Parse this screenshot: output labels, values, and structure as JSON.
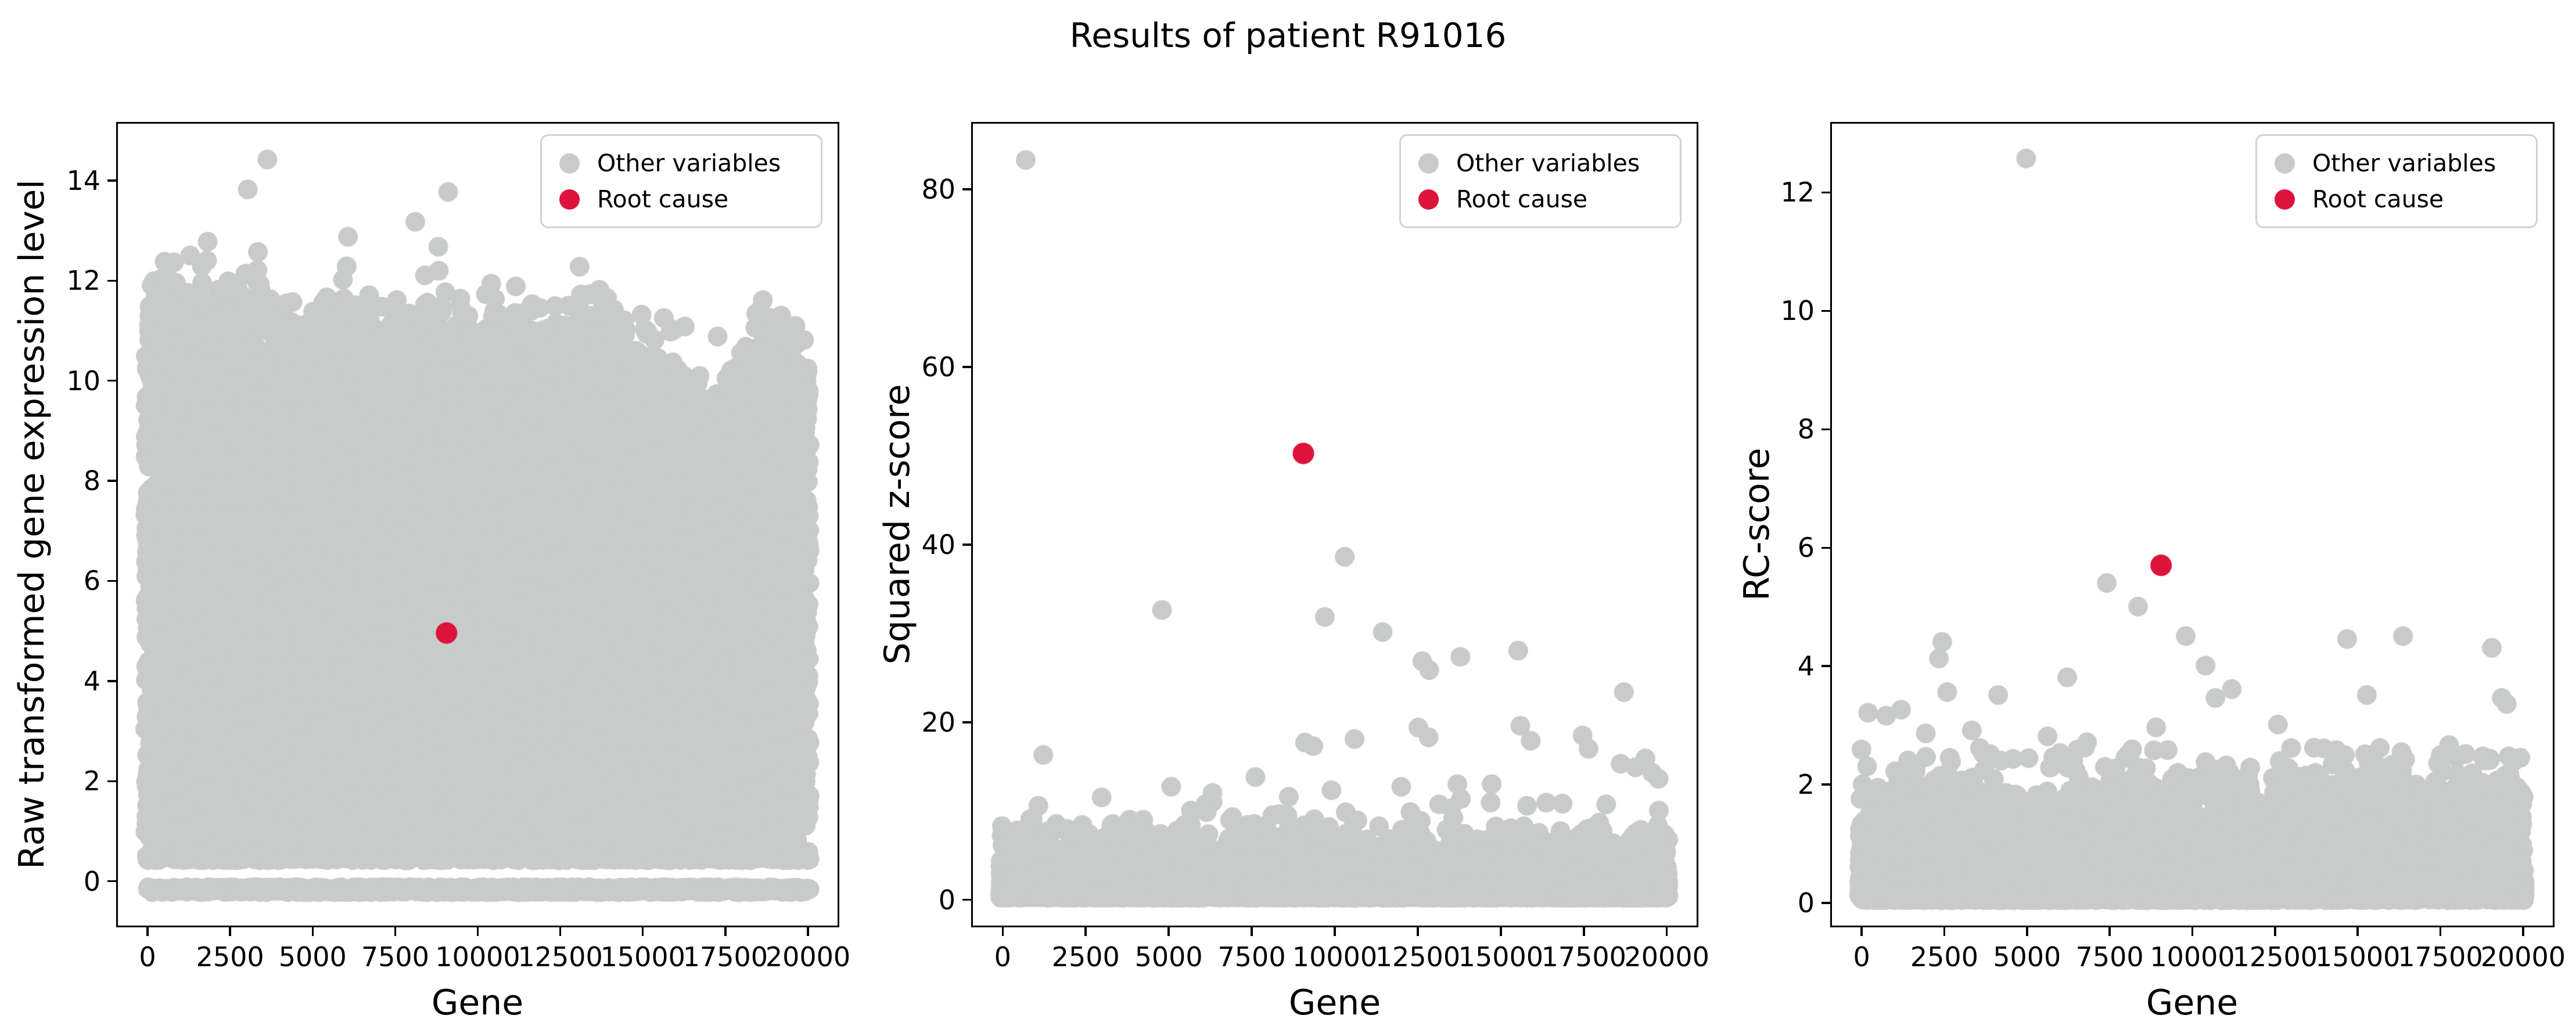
{
  "title": "Results of patient R91016",
  "legend": {
    "other_label": "Other variables",
    "root_label": "Root cause",
    "other_color": "#c9cbca",
    "root_color": "#dc143c"
  },
  "chart_data": [
    {
      "type": "scatter",
      "xlabel": "Gene",
      "ylabel": "Raw transformed gene expression level",
      "xlim": [
        -950,
        20950
      ],
      "ylim": [
        -0.92,
        15.17
      ],
      "xticks": [
        0,
        2500,
        5000,
        7500,
        10000,
        12500,
        15000,
        17500,
        20000
      ],
      "yticks": [
        0,
        2,
        4,
        6,
        8,
        10,
        12,
        14
      ],
      "grid": false,
      "legend_position": "upper right",
      "root_cause": {
        "x": 9050,
        "y": 4.95
      },
      "outliers": [
        [
          3600,
          14.45
        ],
        [
          3000,
          13.85
        ],
        [
          9100,
          13.8
        ],
        [
          8100,
          13.2
        ],
        [
          6050,
          12.9
        ],
        [
          8800,
          12.7
        ],
        [
          470,
          12.4
        ],
        [
          13100,
          12.3
        ],
        [
          16300,
          11.1
        ],
        [
          17300,
          10.9
        ],
        [
          19000,
          11.0
        ]
      ],
      "cloud": {
        "kind": "expression",
        "n_main": 11500,
        "y_min": 0.72,
        "rows": [
          {
            "y": -0.2,
            "n": 950,
            "jitter": 0.05
          },
          {
            "y": 0.48,
            "n": 1000,
            "jitter": 0.09
          }
        ],
        "envelope": {
          "base": 10.45,
          "wave_amp": 0.18,
          "wave_period": 2600,
          "left_boost": 0.35,
          "left_center": 1500,
          "left_width": 2500,
          "dip_center": 16800,
          "dip_depth": 1.6,
          "dip_width": 1100
        },
        "sparse_top": {
          "n": 700,
          "x_bias": 1.6,
          "extra_sigma": 0.6,
          "extra_cap": 2.3,
          "right_fade": 0.5
        }
      },
      "seed": 101
    },
    {
      "type": "scatter",
      "xlabel": "Gene",
      "ylabel": "Squared z-score",
      "xlim": [
        -950,
        20950
      ],
      "ylim": [
        -3.1,
        87.6
      ],
      "xticks": [
        0,
        2500,
        5000,
        7500,
        10000,
        12500,
        15000,
        17500,
        20000
      ],
      "yticks": [
        0,
        20,
        40,
        60,
        80
      ],
      "grid": false,
      "legend_position": "upper right",
      "root_cause": {
        "x": 9050,
        "y": 50.3
      },
      "outliers": [
        [
          650,
          83.5
        ],
        [
          1180,
          16.2
        ],
        [
          4770,
          32.6
        ],
        [
          9700,
          31.8
        ],
        [
          10300,
          38.6
        ],
        [
          11450,
          30.1
        ],
        [
          12650,
          26.8
        ],
        [
          12860,
          25.8
        ],
        [
          13800,
          27.3
        ],
        [
          15550,
          28.0
        ],
        [
          18750,
          23.3
        ],
        [
          12530,
          19.3
        ],
        [
          12840,
          18.2
        ],
        [
          15615,
          19.5
        ],
        [
          15930,
          17.8
        ],
        [
          17500,
          18.4
        ],
        [
          17680,
          16.9
        ],
        [
          18650,
          15.2
        ],
        [
          19100,
          14.8
        ],
        [
          12010,
          12.6
        ],
        [
          13710,
          12.9
        ],
        [
          14750,
          12.9
        ],
        [
          16400,
          10.8
        ],
        [
          9100,
          17.6
        ],
        [
          9350,
          17.2
        ],
        [
          10600,
          18.0
        ],
        [
          5050,
          12.6
        ],
        [
          6300,
          11.9
        ],
        [
          7600,
          13.7
        ],
        [
          9900,
          12.2
        ],
        [
          19400,
          15.8
        ],
        [
          19600,
          14.2
        ],
        [
          19800,
          13.5
        ]
      ],
      "cloud": {
        "kind": "exp",
        "n": 9500,
        "scale": 1.6,
        "cap": 11.5,
        "min": 0.05
      },
      "seed": 202
    },
    {
      "type": "scatter",
      "xlabel": "Gene",
      "ylabel": "RC-score",
      "xlim": [
        -950,
        20950
      ],
      "ylim": [
        -0.41,
        13.19
      ],
      "xticks": [
        0,
        2500,
        5000,
        7500,
        10000,
        12500,
        15000,
        17500,
        20000
      ],
      "yticks": [
        0,
        2,
        4,
        6,
        8,
        10,
        12
      ],
      "grid": false,
      "legend_position": "upper right",
      "root_cause": {
        "x": 9050,
        "y": 5.7
      },
      "outliers": [
        [
          4950,
          12.6
        ],
        [
          7400,
          5.4
        ],
        [
          8350,
          5.0
        ],
        [
          9800,
          4.5
        ],
        [
          14700,
          4.45
        ],
        [
          16400,
          4.5
        ],
        [
          19100,
          4.3
        ],
        [
          2400,
          4.4
        ],
        [
          2300,
          4.12
        ],
        [
          10400,
          4.0
        ],
        [
          6200,
          3.8
        ],
        [
          11200,
          3.6
        ],
        [
          15300,
          3.5
        ],
        [
          2550,
          3.55
        ],
        [
          4100,
          3.5
        ],
        [
          10700,
          3.45
        ],
        [
          150,
          3.2
        ],
        [
          700,
          3.15
        ],
        [
          1150,
          3.25
        ],
        [
          19400,
          3.45
        ],
        [
          19550,
          3.35
        ],
        [
          3300,
          2.9
        ],
        [
          5600,
          2.8
        ],
        [
          8900,
          2.95
        ],
        [
          12600,
          3.0
        ],
        [
          13000,
          2.6
        ],
        [
          17800,
          2.65
        ],
        [
          18300,
          2.5
        ],
        [
          6800,
          2.7
        ],
        [
          1900,
          2.85
        ]
      ],
      "cloud": {
        "kind": "exp",
        "n": 9500,
        "scale": 0.52,
        "cap": 2.6,
        "min": 0.02
      },
      "seed": 303
    }
  ]
}
